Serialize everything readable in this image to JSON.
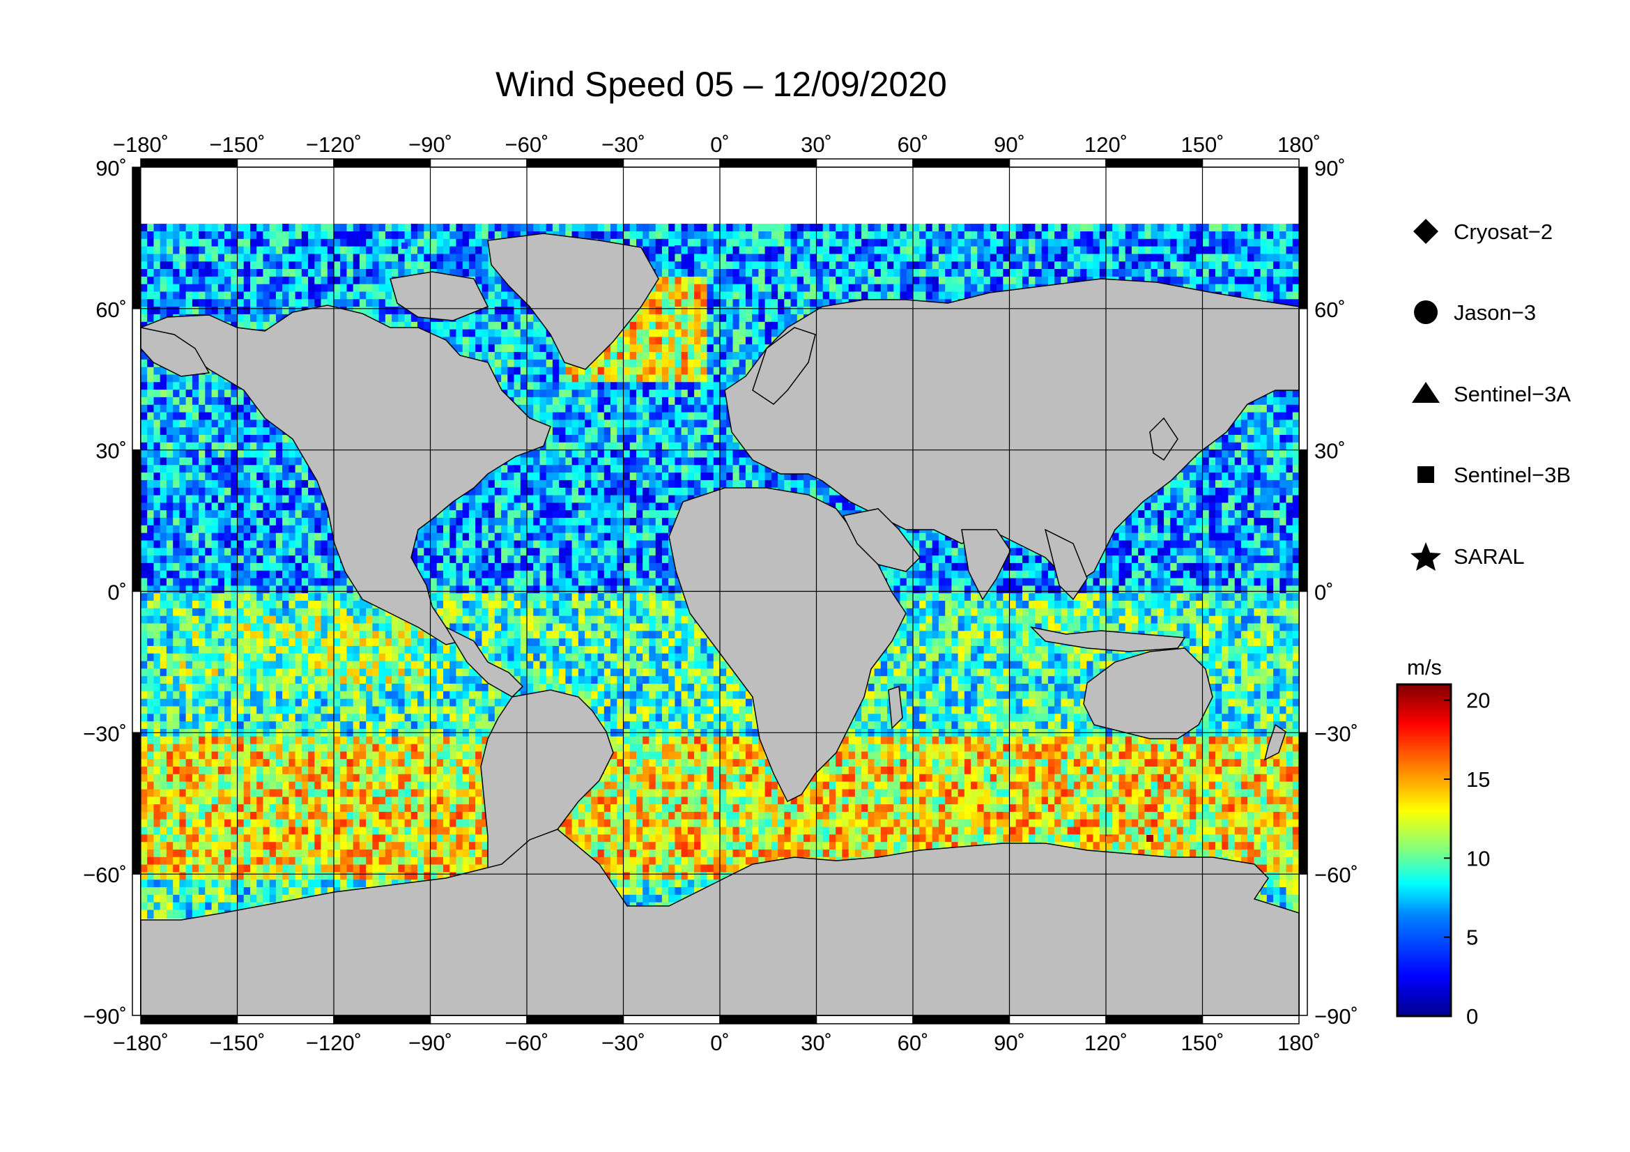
{
  "title": "Wind Speed 05 – 12/09/2020",
  "map": {
    "projection": "equirectangular",
    "lon_range": [
      -180,
      180
    ],
    "lat_range": [
      -90,
      90
    ],
    "lon_ticks": [
      -180,
      -150,
      -120,
      -90,
      -60,
      -30,
      0,
      30,
      60,
      90,
      120,
      150,
      180
    ],
    "lat_ticks": [
      90,
      60,
      30,
      0,
      -30,
      -60,
      -90
    ],
    "lon_tick_labels": [
      "−180˚",
      "−150˚",
      "−120˚",
      "−90˚",
      "−60˚",
      "−30˚",
      "0˚",
      "30˚",
      "60˚",
      "90˚",
      "120˚",
      "150˚",
      "180˚"
    ],
    "lat_tick_labels": [
      "90˚",
      "60˚",
      "30˚",
      "0˚",
      "−30˚",
      "−60˚",
      "−90˚"
    ],
    "grid": true,
    "land_color": "#bebebe",
    "ice_color": "#ffffff"
  },
  "legend": {
    "items": [
      {
        "label": "Cryosat−2",
        "icon": "diamond-icon"
      },
      {
        "label": "Jason−3",
        "icon": "circle-icon"
      },
      {
        "label": "Sentinel−3A",
        "icon": "triangle-icon"
      },
      {
        "label": "Sentinel−3B",
        "icon": "square-icon"
      },
      {
        "label": "SARAL",
        "icon": "star-icon"
      }
    ]
  },
  "colorbar": {
    "unit": "m/s",
    "min": 0,
    "max": 21,
    "ticks": [
      20,
      15,
      10,
      5,
      0
    ],
    "colors": [
      "#00008f",
      "#0000ff",
      "#0080ff",
      "#00ffff",
      "#80ff80",
      "#ffff00",
      "#ff8000",
      "#ff0000",
      "#800000"
    ]
  },
  "chart_data": {
    "type": "heatmap",
    "title": "Wind Speed 05 – 12/09/2020",
    "xlabel": "",
    "ylabel": "",
    "value_unit": "m/s",
    "value_range": [
      0,
      21
    ],
    "latitude_band_approx_wind_speed": [
      {
        "lat_band": "60 to 80",
        "wind_speed_mps": 6
      },
      {
        "lat_band": "30 to 60",
        "wind_speed_mps": 6
      },
      {
        "lat_band": "0 to 30",
        "wind_speed_mps": 6
      },
      {
        "lat_band": "-30 to 0",
        "wind_speed_mps": 9
      },
      {
        "lat_band": "-60 to -30",
        "wind_speed_mps": 13
      },
      {
        "lat_band": "-66 to -60",
        "wind_speed_mps": 9
      }
    ]
  }
}
